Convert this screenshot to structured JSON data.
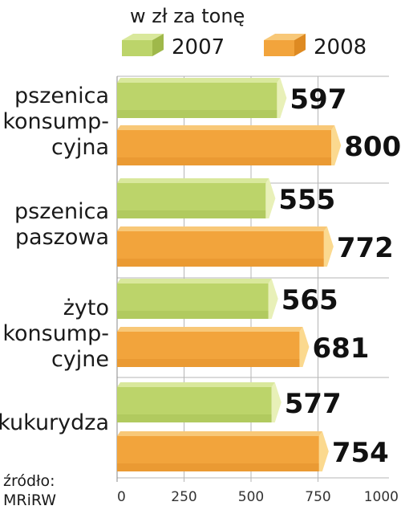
{
  "chart_data": {
    "type": "bar",
    "orientation": "horizontal",
    "subtitle": "w zł za tonę",
    "categories": [
      [
        "pszenica",
        "konsump-",
        "cyjna"
      ],
      [
        "pszenica",
        "paszowa"
      ],
      [
        "żyto",
        "konsump-",
        "cyjne"
      ],
      [
        "kukurydza"
      ]
    ],
    "series": [
      {
        "name": "2007",
        "values": [
          597,
          555,
          565,
          577
        ]
      },
      {
        "name": "2008",
        "values": [
          800,
          772,
          681,
          754
        ]
      }
    ],
    "xlim": [
      0,
      1000
    ],
    "xticks": [
      "0",
      "250",
      "500",
      "750",
      "1000"
    ],
    "grid": true,
    "legend_position": "top",
    "source": [
      "źródło:",
      "MRiRW"
    ]
  },
  "colors": {
    "s2007": {
      "front": "#bcd46a",
      "top": "#d9e89c",
      "side": "#e8f0b8",
      "shade": "#9fb84a"
    },
    "s2008": {
      "front": "#f2a43c",
      "top": "#f8c878",
      "side": "#fbd98f",
      "shade": "#de8a22"
    },
    "grid": "#b5b5b5"
  }
}
